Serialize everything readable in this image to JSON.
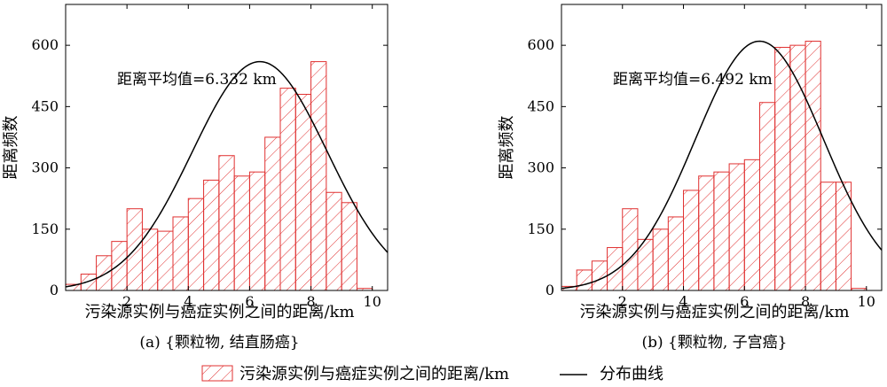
{
  "chart_data": [
    {
      "type": "bar",
      "overlay": "line",
      "annotation": "距离平均值=6.332 km",
      "xlabel": "污染源实例与癌症实例之间的距离/km",
      "ylabel": "距离频数",
      "caption": "(a) {颗粒物, 结直肠癌}",
      "xlim": [
        0,
        10.5
      ],
      "ylim": [
        0,
        700
      ],
      "xticks": [
        2,
        4,
        6,
        8,
        10
      ],
      "yticks": [
        0,
        150,
        300,
        450,
        600
      ],
      "bin_width": 0.5,
      "bin_starts": [
        0,
        0.5,
        1,
        1.5,
        2,
        2.5,
        3,
        3.5,
        4,
        4.5,
        5,
        5.5,
        6,
        6.5,
        7,
        7.5,
        8,
        8.5,
        9,
        9.5,
        10
      ],
      "values": [
        15,
        40,
        85,
        120,
        200,
        150,
        145,
        180,
        225,
        270,
        330,
        280,
        290,
        375,
        495,
        480,
        560,
        240,
        215,
        5,
        0
      ],
      "curve": {
        "mean": 6.332,
        "sd": 2.2,
        "peak": 560
      },
      "grid": false
    },
    {
      "type": "bar",
      "overlay": "line",
      "annotation": "距离平均值=6.492 km",
      "xlabel": "污染源实例与癌症实例之间的距离/km",
      "ylabel": "距离频数",
      "caption": "(b) {颗粒物, 子宫癌}",
      "xlim": [
        0,
        10.5
      ],
      "ylim": [
        0,
        700
      ],
      "xticks": [
        2,
        4,
        6,
        8,
        10
      ],
      "yticks": [
        0,
        150,
        300,
        450,
        600
      ],
      "bin_width": 0.5,
      "bin_starts": [
        0,
        0.5,
        1,
        1.5,
        2,
        2.5,
        3,
        3.5,
        4,
        4.5,
        5,
        5.5,
        6,
        6.5,
        7,
        7.5,
        8,
        8.5,
        9,
        9.5,
        10
      ],
      "values": [
        10,
        50,
        72,
        105,
        200,
        125,
        150,
        180,
        245,
        280,
        290,
        310,
        320,
        460,
        595,
        600,
        610,
        265,
        265,
        5,
        0
      ],
      "curve": {
        "mean": 6.492,
        "sd": 2.1,
        "peak": 610
      },
      "grid": false
    }
  ],
  "legend": {
    "position": "bottom",
    "bar_label": "污染源实例与癌症实例之间的距离/km",
    "curve_label": "分布曲线"
  },
  "colors": {
    "bar_edge": "#e03030",
    "curve": "#000000",
    "axis": "#000000"
  }
}
